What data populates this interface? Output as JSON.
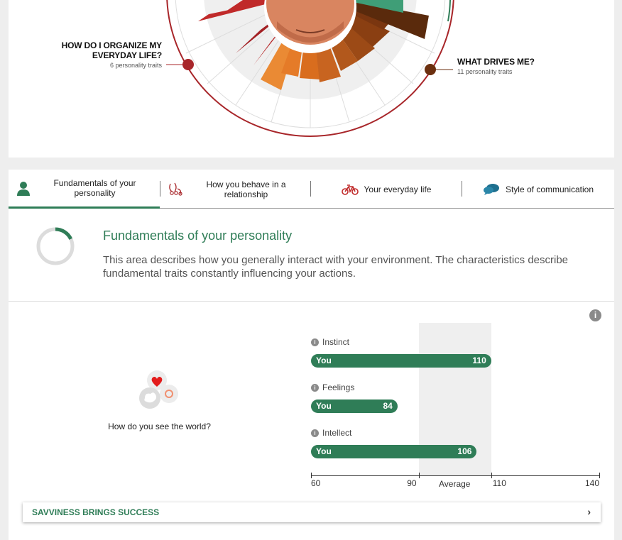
{
  "wheel": {
    "left_section": {
      "title_line1": "HOW DO I ORGANIZE MY",
      "title_line2": "EVERYDAY LIFE?",
      "subtitle": "6 personality traits"
    },
    "right_section": {
      "title": "WHAT DRIVES ME?",
      "subtitle": "11 personality traits"
    },
    "colors": {
      "red_ring": "#a8262a",
      "brown_ring": "#6b2f0f",
      "green": "#2f7d57"
    }
  },
  "tabs": [
    {
      "label_line1": "Fundamentals of your",
      "label_line2": "personality",
      "icon": "person-icon",
      "active": true
    },
    {
      "label_line1": "How you behave in a",
      "label_line2": "relationship",
      "icon": "relationship-icon",
      "active": false
    },
    {
      "label_line1": "Your everyday life",
      "label_line2": "",
      "icon": "bicycle-icon",
      "active": false
    },
    {
      "label_line1": "Style of communication",
      "label_line2": "",
      "icon": "speech-bubbles-icon",
      "active": false
    }
  ],
  "intro": {
    "title": "Fundamentals of your personality",
    "text": "This area describes how you generally interact with your environment. The characteristics describe fundamental traits constantly influencing your actions.",
    "progress_fraction": 0.18
  },
  "section": {
    "question": "How do you see the world?",
    "info": "i"
  },
  "chart_data": {
    "type": "bar",
    "orientation": "horizontal",
    "categories": [
      "Instinct",
      "Feelings",
      "Intellect"
    ],
    "series": [
      {
        "name": "You",
        "values": [
          110,
          84,
          106
        ]
      }
    ],
    "bar_label": "You",
    "xlim": [
      60,
      140
    ],
    "ticks": [
      60,
      90,
      110,
      140
    ],
    "average_band": [
      90,
      110
    ],
    "average_label": "Average",
    "color": "#2f7d57"
  },
  "accordion": {
    "label": "SAVVINESS BRINGS SUCCESS",
    "chevron": "›"
  }
}
